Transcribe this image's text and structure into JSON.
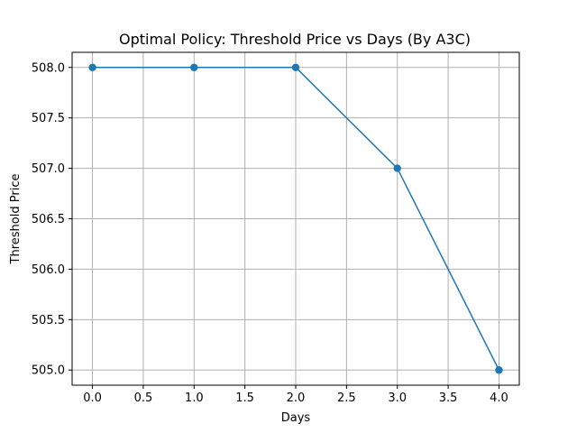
{
  "chart_data": {
    "type": "line",
    "title": "Optimal Policy: Threshold Price vs Days (By A3C)",
    "xlabel": "Days",
    "ylabel": "Threshold Price",
    "x": [
      0,
      1,
      2,
      3,
      4
    ],
    "series": [
      {
        "values": [
          508.0,
          508.0,
          508.0,
          507.0,
          505.0
        ],
        "color": "#1f77b4",
        "marker": "circle"
      }
    ],
    "xlim": [
      -0.2,
      4.2
    ],
    "ylim": [
      504.85,
      508.15
    ],
    "xticks": [
      "0.0",
      "0.5",
      "1.0",
      "1.5",
      "2.0",
      "2.5",
      "3.0",
      "3.5",
      "4.0"
    ],
    "yticks": [
      "505.0",
      "505.5",
      "506.0",
      "506.5",
      "507.0",
      "507.5",
      "508.0"
    ],
    "grid": true
  }
}
